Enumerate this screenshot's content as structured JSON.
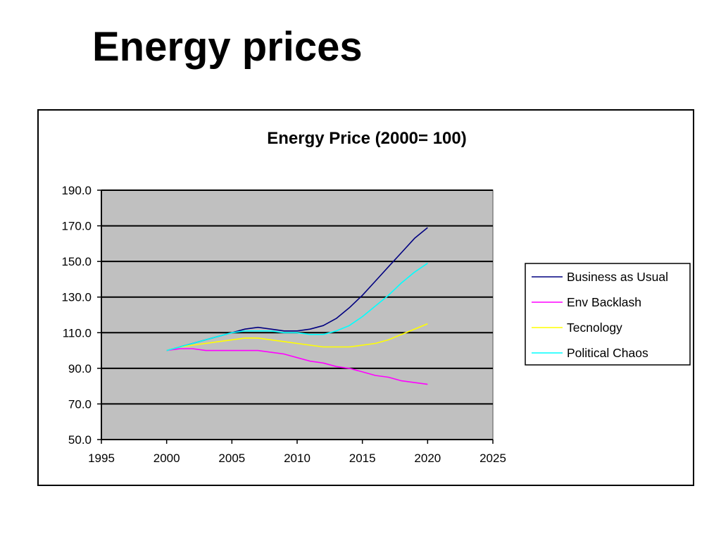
{
  "slide": {
    "title": "Energy prices"
  },
  "chart_data": {
    "type": "line",
    "title": "Energy Price (2000= 100)",
    "xlabel": "",
    "ylabel": "",
    "xlim": [
      1995,
      2025
    ],
    "ylim": [
      50,
      190
    ],
    "x_ticks": [
      "1995",
      "2000",
      "2005",
      "2010",
      "2015",
      "2020",
      "2025"
    ],
    "y_ticks": [
      "50.0",
      "70.0",
      "90.0",
      "110.0",
      "130.0",
      "150.0",
      "170.0",
      "190.0"
    ],
    "grid": "horizontal",
    "plot_background": "#c0c0c0",
    "legend_position": "right",
    "x": [
      2000,
      2001,
      2002,
      2003,
      2004,
      2005,
      2006,
      2007,
      2008,
      2009,
      2010,
      2011,
      2012,
      2013,
      2014,
      2015,
      2016,
      2017,
      2018,
      2019,
      2020
    ],
    "series": [
      {
        "name": "Business as Usual",
        "color": "#000080",
        "values": [
          100,
          102,
          104,
          106,
          108,
          110,
          112,
          113,
          112,
          111,
          111,
          112,
          114,
          118,
          124,
          131,
          139,
          147,
          155,
          163,
          169
        ]
      },
      {
        "name": "Env Backlash",
        "color": "#ff00ff",
        "values": [
          100,
          101,
          101,
          100,
          100,
          100,
          100,
          100,
          99,
          98,
          96,
          94,
          93,
          91,
          90,
          88,
          86,
          85,
          83,
          82,
          81
        ]
      },
      {
        "name": "Tecnology",
        "color": "#ffff00",
        "values": [
          100,
          102,
          103,
          104,
          105,
          106,
          107,
          107,
          106,
          105,
          104,
          103,
          102,
          102,
          102,
          103,
          104,
          106,
          109,
          112,
          115
        ]
      },
      {
        "name": "Political Chaos",
        "color": "#00ffff",
        "values": [
          100,
          102,
          104,
          106,
          108,
          110,
          111,
          111,
          111,
          110,
          110,
          109,
          109,
          111,
          114,
          119,
          125,
          131,
          138,
          144,
          149
        ]
      }
    ]
  }
}
